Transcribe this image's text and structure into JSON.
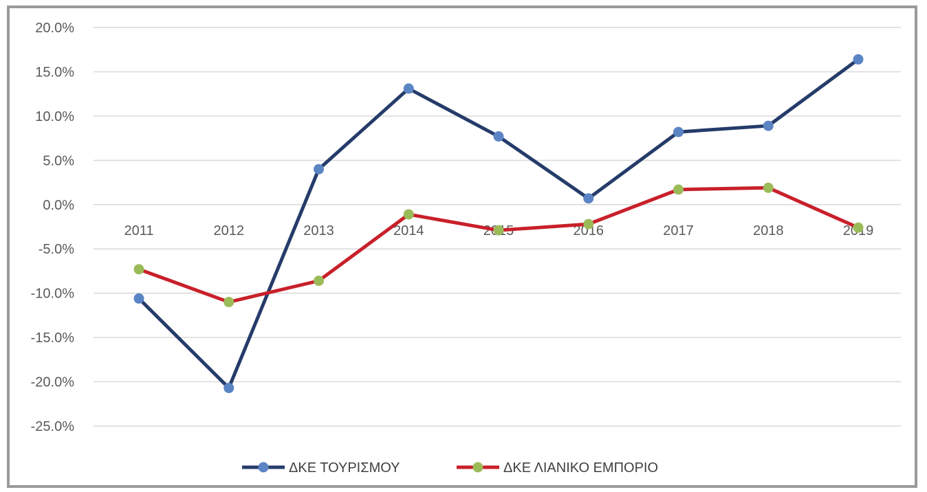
{
  "chart_data": {
    "type": "line",
    "categories": [
      "2011",
      "2012",
      "2013",
      "2014",
      "2015",
      "2016",
      "2017",
      "2018",
      "2019"
    ],
    "series": [
      {
        "name": "ΔΚΕ ΤΟΥΡΙΣΜΟΥ",
        "values": [
          -10.6,
          -20.7,
          4.0,
          13.1,
          7.7,
          0.7,
          8.2,
          8.9,
          16.4
        ],
        "line_color": "#253c6a",
        "marker_color": "#5b84c4"
      },
      {
        "name": "ΔΚΕ ΛΙΑΝΙΚΟ ΕΜΠΟΡΙΟ",
        "values": [
          -7.3,
          -11.0,
          -8.6,
          -1.1,
          -2.9,
          -2.2,
          1.7,
          1.9,
          -2.6
        ],
        "line_color": "#c8202a",
        "marker_color": "#9bbb59"
      }
    ],
    "y_ticks": [
      "20.0%",
      "15.0%",
      "10.0%",
      "5.0%",
      "0.0%",
      "-5.0%",
      "-10.0%",
      "-15.0%",
      "-20.0%",
      "-25.0%"
    ],
    "ylim": [
      -25,
      20
    ],
    "grid": true,
    "legend_position": "bottom"
  }
}
